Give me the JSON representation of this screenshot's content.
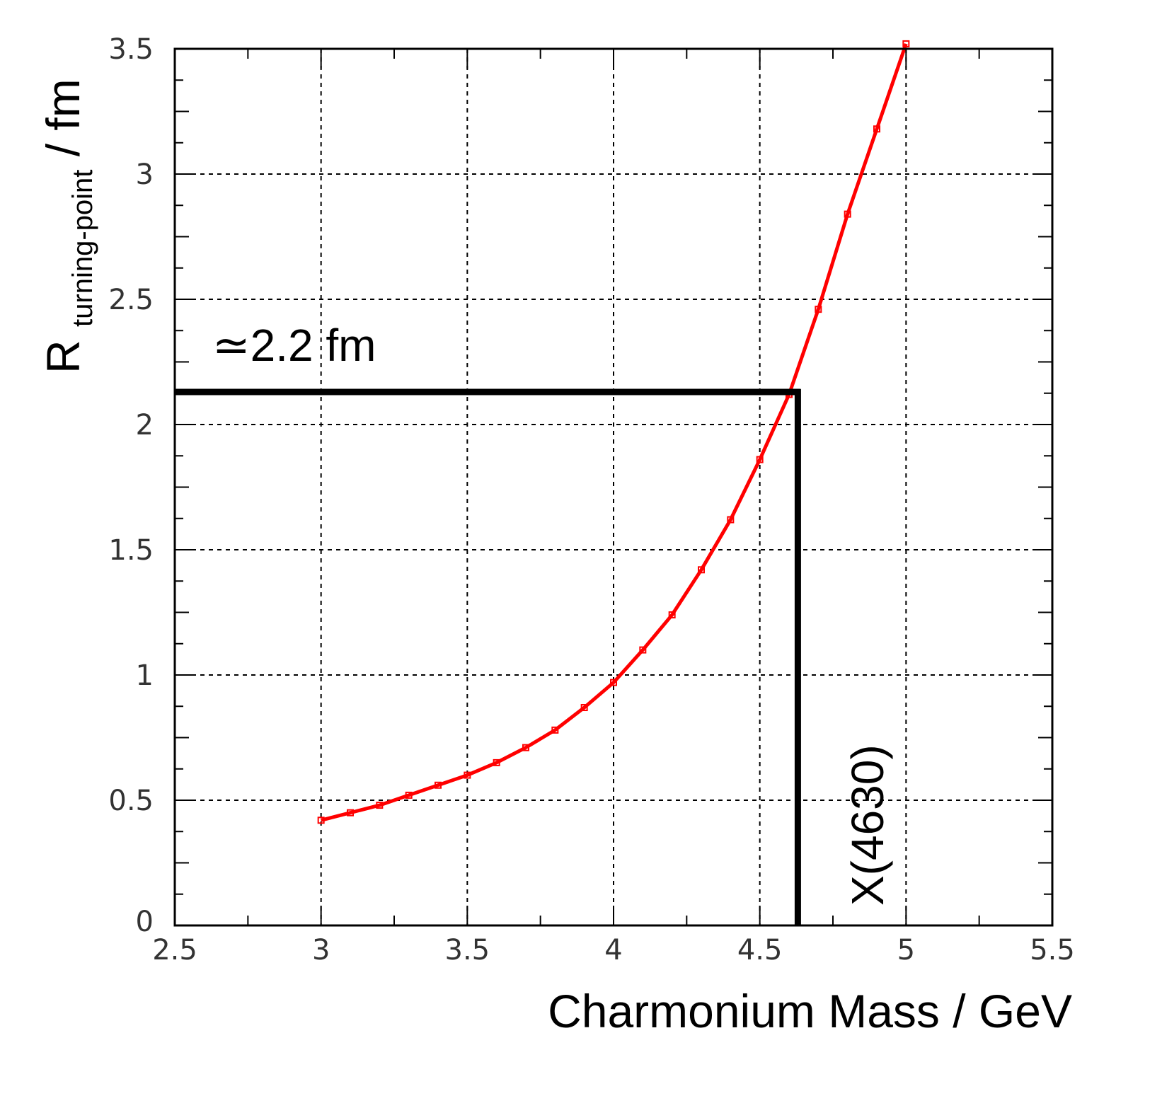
{
  "chart_data": {
    "type": "scatter",
    "title": "",
    "xlabel": "Charmonium Mass / GeV",
    "ylabel": {
      "main": "R",
      "subscript": "turning-point",
      "suffix": " / fm"
    },
    "xlim": [
      2.5,
      5.5
    ],
    "ylim": [
      0,
      3.5
    ],
    "grid": true,
    "x_ticks": [
      2.5,
      3,
      3.5,
      4,
      4.5,
      5,
      5.5
    ],
    "x_tick_labels": [
      "2.5",
      "3",
      "3.5",
      "4",
      "4.5",
      "5",
      "5.5"
    ],
    "y_ticks": [
      0,
      0.5,
      1,
      1.5,
      2,
      2.5,
      3,
      3.5
    ],
    "y_tick_labels": [
      "0",
      "0.5",
      "1",
      "1.5",
      "2",
      "2.5",
      "3",
      "3.5"
    ],
    "series": [
      {
        "name": "R_turning-point",
        "color": "#ff0000",
        "x": [
          3.0,
          3.1,
          3.2,
          3.3,
          3.4,
          3.5,
          3.6,
          3.7,
          3.8,
          3.9,
          4.0,
          4.1,
          4.2,
          4.3,
          4.4,
          4.5,
          4.6,
          4.7,
          4.8,
          4.9,
          5.0
        ],
        "y": [
          0.42,
          0.45,
          0.48,
          0.52,
          0.56,
          0.6,
          0.65,
          0.71,
          0.78,
          0.87,
          0.97,
          1.1,
          1.24,
          1.42,
          1.62,
          1.86,
          2.12,
          2.46,
          2.84,
          3.18,
          3.52
        ]
      }
    ],
    "annotations": [
      {
        "text": "≃2.2 fm",
        "kind": "horizontal-guide",
        "y": 2.13,
        "x_from": 2.5,
        "x_to": 4.63,
        "color": "#000000"
      },
      {
        "text": "X(4630)",
        "kind": "vertical-guide",
        "x": 4.63,
        "y_from": 0,
        "y_to": 2.13,
        "color": "#000000"
      }
    ]
  }
}
